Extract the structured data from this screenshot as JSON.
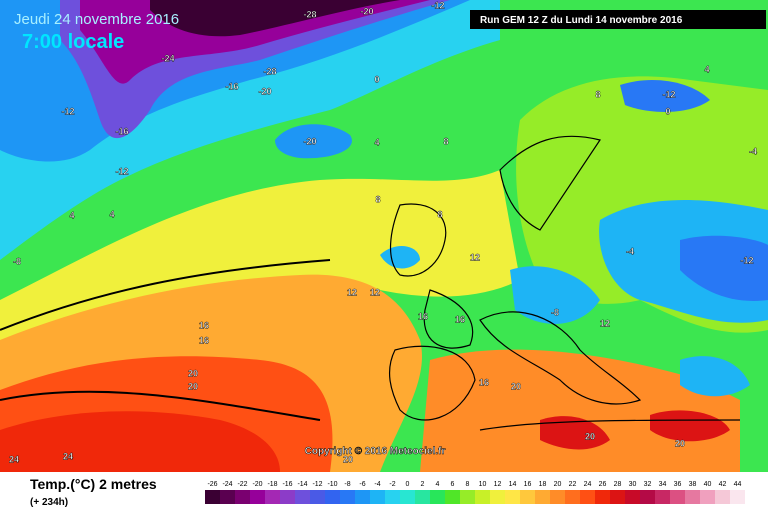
{
  "header": {
    "date": "Jeudi 24 novembre 2016",
    "time": "7:00 locale",
    "run": "Run GEM 12 Z du Lundi 14 novembre 2016"
  },
  "copyright": "Copyright © 2016 Meteociel.fr",
  "footer": {
    "title": "Temp.(°C) 2 metres",
    "lead": "(+ 234h)"
  },
  "scale": {
    "labels": [
      -26,
      -24,
      -22,
      -20,
      -18,
      -16,
      -14,
      -12,
      -10,
      -8,
      -6,
      -4,
      -2,
      0,
      2,
      4,
      6,
      8,
      10,
      12,
      14,
      16,
      18,
      20,
      22,
      24,
      26,
      28,
      30,
      32,
      34,
      36,
      38,
      40,
      42,
      44
    ],
    "colors": [
      "#3a0033",
      "#5a0050",
      "#7a0070",
      "#96009a",
      "#a428b4",
      "#8c3cc8",
      "#6e50dc",
      "#4a5ae6",
      "#3264f0",
      "#2878f5",
      "#1e96f5",
      "#1eb4f5",
      "#28d2f0",
      "#28e6d2",
      "#28e6a0",
      "#28e65a",
      "#50e628",
      "#96ec28",
      "#c8f028",
      "#f0f03c",
      "#ffe646",
      "#ffc83c",
      "#ffaa32",
      "#ff8c28",
      "#ff6e1e",
      "#ff5014",
      "#f0280a",
      "#dc1414",
      "#c80a28",
      "#b40a46",
      "#c82864",
      "#dc5082",
      "#e678a0",
      "#f0a0be",
      "#f5c8d7",
      "#fae6ee"
    ]
  },
  "map_labels": [
    -28,
    -20,
    -12,
    -24,
    -28,
    -16,
    -20,
    -12,
    -16,
    -12,
    0,
    4,
    8,
    -20,
    4,
    4,
    8,
    12,
    12,
    16,
    16,
    20,
    20,
    24,
    24,
    20,
    16,
    20,
    20,
    20,
    -12,
    -4,
    -12,
    -8,
    -4,
    4,
    12,
    16,
    16,
    8,
    0,
    -8,
    12,
    8
  ]
}
